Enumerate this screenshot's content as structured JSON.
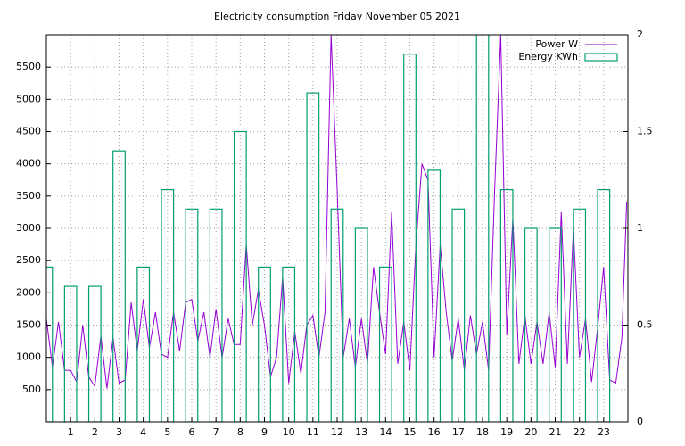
{
  "chart_data": {
    "type": "line",
    "title": "Electricity consumption Friday November 05 2021",
    "xlim": [
      0,
      24
    ],
    "xticks": [
      1,
      2,
      3,
      4,
      5,
      6,
      7,
      8,
      9,
      10,
      11,
      12,
      13,
      14,
      15,
      16,
      17,
      18,
      19,
      20,
      21,
      22,
      23
    ],
    "ylim": [
      0,
      6000
    ],
    "yticks": [
      500,
      1000,
      1500,
      2000,
      2500,
      3000,
      3500,
      4000,
      4500,
      5000,
      5500
    ],
    "y2lim": [
      0,
      2
    ],
    "y2ticks": [
      0,
      0.5,
      1,
      1.5,
      2
    ],
    "grid": true,
    "legend": "top-right",
    "series": [
      {
        "name": "Power W",
        "color": "#9400d3",
        "kind": "line",
        "x": [
          0,
          0.25,
          0.5,
          0.75,
          1,
          1.25,
          1.5,
          1.75,
          2,
          2.25,
          2.5,
          2.75,
          3,
          3.25,
          3.5,
          3.75,
          4,
          4.25,
          4.5,
          4.75,
          5,
          5.25,
          5.5,
          5.75,
          6,
          6.25,
          6.5,
          6.75,
          7,
          7.25,
          7.5,
          7.75,
          8,
          8.25,
          8.5,
          8.75,
          9,
          9.25,
          9.5,
          9.75,
          10,
          10.25,
          10.5,
          10.75,
          11,
          11.25,
          11.5,
          11.75,
          12,
          12.25,
          12.5,
          12.75,
          13,
          13.25,
          13.5,
          13.75,
          14,
          14.25,
          14.5,
          14.75,
          15,
          15.25,
          15.5,
          15.75,
          16,
          16.25,
          16.5,
          16.75,
          17,
          17.25,
          17.5,
          17.75,
          18,
          18.25,
          18.5,
          18.75,
          19,
          19.25,
          19.5,
          19.75,
          20,
          20.25,
          20.5,
          20.75,
          21,
          21.25,
          21.5,
          21.75,
          22,
          22.25,
          22.5,
          22.75,
          23,
          23.25,
          23.5,
          23.75,
          23.95
        ],
        "values": [
          1600,
          850,
          1550,
          800,
          800,
          620,
          1500,
          700,
          550,
          1330,
          520,
          1300,
          600,
          650,
          1850,
          1100,
          1900,
          1150,
          1700,
          1050,
          1000,
          1700,
          1100,
          1850,
          1900,
          1250,
          1700,
          1000,
          1750,
          1000,
          1600,
          1200,
          1200,
          2750,
          1500,
          2050,
          1500,
          700,
          1000,
          2250,
          600,
          1400,
          750,
          1500,
          1650,
          1000,
          1700,
          6000,
          3600,
          1000,
          1600,
          850,
          1600,
          900,
          2400,
          1700,
          1050,
          3250,
          900,
          1550,
          800,
          2750,
          4000,
          3750,
          1000,
          2750,
          1700,
          950,
          1600,
          800,
          1650,
          1050,
          1550,
          800,
          3600,
          6000,
          1350,
          3150,
          900,
          1650,
          900,
          1550,
          900,
          1700,
          850,
          3250,
          900,
          3000,
          1000,
          1600,
          620,
          1450,
          2400,
          650,
          600,
          1300,
          3400
        ]
      },
      {
        "name": "Energy KWh",
        "color": "#009e73",
        "kind": "boxes",
        "axis": "y2",
        "x": [
          0,
          1,
          2,
          3,
          4,
          5,
          6,
          7,
          8,
          9,
          10,
          11,
          12,
          13,
          14,
          15,
          16,
          17,
          18,
          19,
          20,
          21,
          22,
          23
        ],
        "values": [
          0.8,
          0.7,
          0.7,
          1.4,
          0.8,
          1.2,
          1.1,
          1.1,
          1.5,
          0.8,
          0.8,
          1.7,
          1.1,
          1.0,
          0.8,
          1.9,
          1.3,
          1.1,
          2.1,
          1.2,
          1.0,
          1.0,
          1.1,
          1.2
        ]
      }
    ]
  }
}
